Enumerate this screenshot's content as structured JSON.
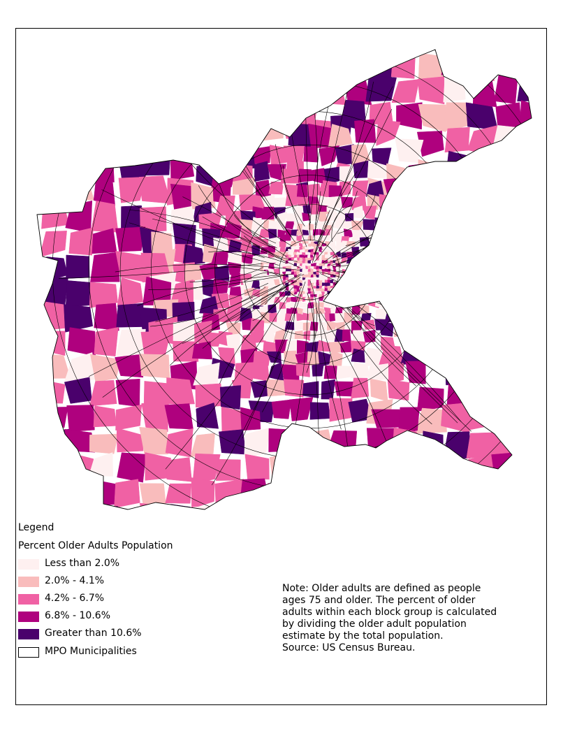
{
  "legend": {
    "title": "Legend",
    "subtitle": "Percent Older Adults Population",
    "items": [
      {
        "label": "Less than 2.0%",
        "color": "#fef0f0"
      },
      {
        "label": "2.0% - 4.1%",
        "color": "#f9bcbc"
      },
      {
        "label": "4.2% - 6.7%",
        "color": "#f061a4"
      },
      {
        "label": "6.8% - 10.6%",
        "color": "#af017e"
      },
      {
        "label": "Greater than 10.6%",
        "color": "#4a016c"
      }
    ],
    "boundary": {
      "label": "MPO Municipalities",
      "color": "#ffffff"
    }
  },
  "note": {
    "lines": [
      "Note: Older adults are defined as people",
      "ages 75 and older. The percent of older",
      "adults within each block group is calculated",
      "by dividing the older adult population",
      "estimate by the total population.",
      "Source: US Census Bureau."
    ]
  }
}
